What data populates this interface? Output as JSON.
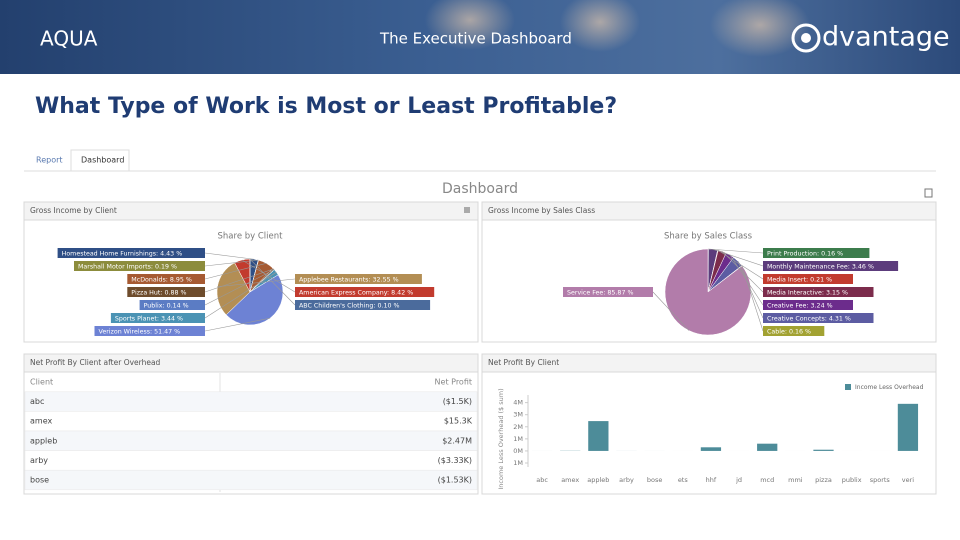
{
  "header": {
    "brand": "AQUA",
    "subtitle": "The Executive Dashboard",
    "logo": "dvantage"
  },
  "headline": "What Type of Work is Most or Least Profitable?",
  "tabs": [
    "Report",
    "Dashboard"
  ],
  "dashboard_title": "Dashboard",
  "client_pie": {
    "type": "pie",
    "panel_title": "Gross Income by Client",
    "title": "Share by Client",
    "slices": [
      {
        "label": "Homestead Home Furnishings: 4.43 %",
        "value": 4.43,
        "color": "#2f4f86"
      },
      {
        "label": "Marshall Motor Imports: 0.19 %",
        "value": 0.19,
        "color": "#8c8c3c"
      },
      {
        "label": "McDonalds: 8.95 %",
        "value": 8.95,
        "color": "#a65a32"
      },
      {
        "label": "Pizza Hut: 0.88 %",
        "value": 0.88,
        "color": "#6e4c2c"
      },
      {
        "label": "Publix: 0.14 %",
        "value": 0.14,
        "color": "#5b7cc4"
      },
      {
        "label": "Sports Planet: 3.44 %",
        "value": 3.44,
        "color": "#4b93b4"
      },
      {
        "label": "Verizon Wireless: 51.47 %",
        "value": 51.47,
        "color": "#6d82d4"
      },
      {
        "label": "Applebee Restaurants: 32.55 %",
        "value": 32.55,
        "color": "#b38e54"
      },
      {
        "label": "American Express Company: 8.42 %",
        "value": 8.42,
        "color": "#c23b2e"
      },
      {
        "label": "ABC Children's Clothing: 0.10 %",
        "value": 0.1,
        "color": "#4b6b9c"
      }
    ]
  },
  "sales_pie": {
    "type": "pie",
    "panel_title": "Gross Income by Sales Class",
    "title": "Share by Sales Class",
    "slices": [
      {
        "label": "Print Production: 0.16 %",
        "value": 0.16,
        "color": "#3c7c4c"
      },
      {
        "label": "Monthly Maintenance Fee: 3.46 %",
        "value": 3.46,
        "color": "#5c3c7c"
      },
      {
        "label": "Media Insert: 0.21 %",
        "value": 0.21,
        "color": "#c23b2e"
      },
      {
        "label": "Media Interactive: 3.15 %",
        "value": 3.15,
        "color": "#7c2c4c"
      },
      {
        "label": "Creative Fee: 3.24 %",
        "value": 3.24,
        "color": "#6c2c8c"
      },
      {
        "label": "Creative Concepts: 4.31 %",
        "value": 4.31,
        "color": "#5c5ca2"
      },
      {
        "label": "Cable: 0.16 %",
        "value": 0.16,
        "color": "#a2a232"
      },
      {
        "label": "Service Fee: 85.87 %",
        "value": 85.87,
        "color": "#b27caa"
      }
    ]
  },
  "table": {
    "panel_title": "Net Profit By Client after Overhead",
    "columns": [
      "Client",
      "Net Profit"
    ],
    "rows": [
      [
        "abc",
        "($1.5K)"
      ],
      [
        "amex",
        "$15.3K"
      ],
      [
        "appleb",
        "$2.47M"
      ],
      [
        "arby",
        "($3.33K)"
      ],
      [
        "bose",
        "($1.53K)"
      ]
    ]
  },
  "chart_data": {
    "type": "bar",
    "panel_title": "Net Profit By Client",
    "y_label": "Income Less Overhead ($ sum)",
    "categories": [
      "abc",
      "amex",
      "appleb",
      "arby",
      "bose",
      "ets",
      "hhf",
      "jd",
      "mcd",
      "mmi",
      "pizza",
      "publix",
      "sports",
      "veri"
    ],
    "series": [
      {
        "name": "Income Less Overhead",
        "color": "#4d8c99",
        "values": [
          -0.0015,
          0.0153,
          2.47,
          -0.00333,
          -0.00153,
          0,
          0.3,
          0,
          0.6,
          0,
          0.1,
          0,
          0,
          3.9
        ]
      }
    ],
    "ylim": [
      -1,
      4.3
    ],
    "yticks": [
      {
        "value": -1,
        "label": "1M"
      },
      {
        "value": 0,
        "label": "0M"
      },
      {
        "value": 1,
        "label": "1M"
      },
      {
        "value": 2,
        "label": "2M"
      },
      {
        "value": 3,
        "label": "3M"
      },
      {
        "value": 4,
        "label": "4M"
      }
    ],
    "legend": "top-right"
  }
}
